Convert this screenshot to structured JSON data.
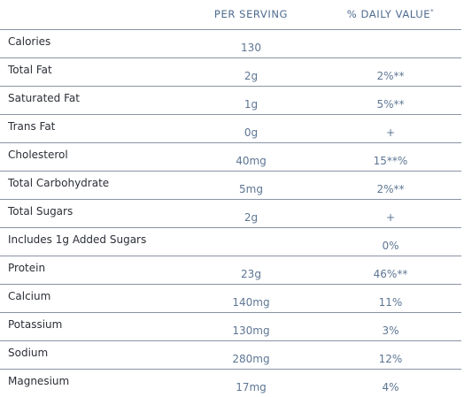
{
  "header": {
    "per_serving": "PER SERVING",
    "daily_value": "% DAILY VALUE",
    "daily_value_mark": "*"
  },
  "rows": [
    {
      "label": "Calories",
      "per": "130",
      "dv": ""
    },
    {
      "label": "Total Fat",
      "per": "2g",
      "dv": "2%**"
    },
    {
      "label": "Saturated Fat",
      "per": "1g",
      "dv": "5%**"
    },
    {
      "label": "Trans Fat",
      "per": "0g",
      "dv": "+"
    },
    {
      "label": "Cholesterol",
      "per": "40mg",
      "dv": "15**%"
    },
    {
      "label": "Total Carbohydrate",
      "per": "5mg",
      "dv": "2%**"
    },
    {
      "label": "Total Sugars",
      "per": "2g",
      "dv": "+"
    },
    {
      "label": "Includes 1g Added Sugars",
      "per": "",
      "dv": "0%"
    },
    {
      "label": "Protein",
      "per": "23g",
      "dv": "46%**"
    },
    {
      "label": "Calcium",
      "per": "140mg",
      "dv": "11%"
    },
    {
      "label": "Potassium",
      "per": "130mg",
      "dv": "3%"
    },
    {
      "label": "Sodium",
      "per": "280mg",
      "dv": "12%"
    },
    {
      "label": "Magnesium",
      "per": "17mg",
      "dv": "4%"
    }
  ]
}
